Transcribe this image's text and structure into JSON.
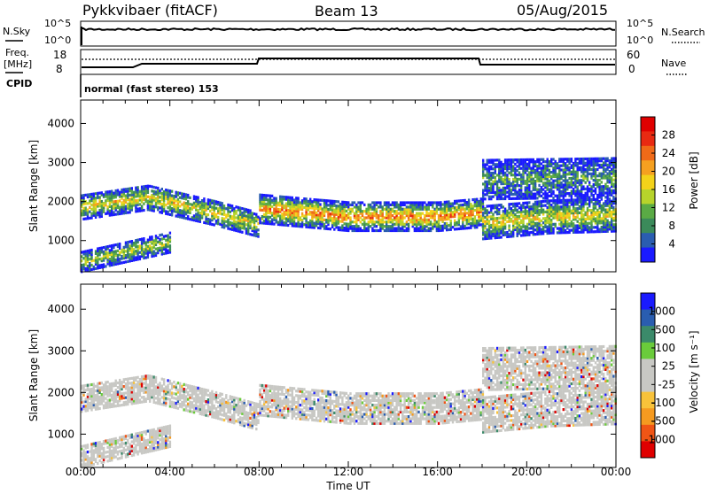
{
  "header": {
    "station": "Pykkvibaer (fitACF)",
    "beam": "Beam 13",
    "date": "05/Aug/2015"
  },
  "noise_panel": {
    "left_label": "N.Sky",
    "right_label": "N.Search",
    "left_ticks": [
      "10^5",
      "10^0"
    ],
    "right_ticks": [
      "10^5",
      "10^0"
    ]
  },
  "freq_panel": {
    "left_label_line1": "Freq.",
    "left_label_line2": "[MHz]",
    "left_ticks": [
      "18",
      "8"
    ],
    "right_label": "Nave",
    "right_ticks": [
      "60",
      "0"
    ]
  },
  "cpid": {
    "label": "CPID",
    "text": "normal (fast stereo) 153"
  },
  "colors": {
    "power": [
      "#1a1aff",
      "#2a5db0",
      "#3b8a5a",
      "#5aaa45",
      "#b7d32b",
      "#f3d21a",
      "#f5a020",
      "#f06a18",
      "#e82a12",
      "#e00000"
    ],
    "velocity": [
      "#e00000",
      "#f05515",
      "#f59a20",
      "#f8c23a",
      "#c8c8c4",
      "#c8c8c4",
      "#6acb3b",
      "#3b8a6a",
      "#2a5db0",
      "#1a1aff"
    ]
  },
  "chart_data": [
    {
      "type": "heatmap",
      "panel": "power",
      "ylabel": "Slant Range [km]",
      "yticks": [
        "4000",
        "3000",
        "2000",
        "1000"
      ],
      "ylim": [
        200,
        4600
      ],
      "xlim": [
        0,
        24
      ],
      "colorbar_label": "Power [dB]",
      "colorbar_ticks": [
        "28",
        "24",
        "20",
        "16",
        "12",
        "8",
        "4"
      ],
      "bands": [
        {
          "x": [
            0,
            3,
            6,
            8
          ],
          "y_center": [
            1900,
            2150,
            1750,
            1450
          ],
          "width": 320,
          "level": 0.55
        },
        {
          "x": [
            8,
            12,
            16,
            18
          ],
          "y_center": [
            1850,
            1650,
            1650,
            1750
          ],
          "width": 360,
          "level": 0.75
        },
        {
          "x": [
            18,
            21,
            24
          ],
          "y_center": [
            1500,
            1650,
            1700
          ],
          "width": 420,
          "level": 0.55
        },
        {
          "x": [
            0,
            4
          ],
          "y_center": [
            500,
            1000
          ],
          "width": 260,
          "level": 0.45
        },
        {
          "x": [
            18,
            24
          ],
          "y_center": [
            2600,
            2650
          ],
          "width": 500,
          "level": 0.3
        }
      ]
    },
    {
      "type": "heatmap",
      "panel": "velocity",
      "ylabel": "Slant Range [km]",
      "xlabel": "Time UT",
      "yticks": [
        "4000",
        "3000",
        "2000",
        "1000"
      ],
      "ylim": [
        200,
        4600
      ],
      "xlim": [
        0,
        24
      ],
      "xticks": [
        "00:00",
        "04:00",
        "08:00",
        "12:00",
        "16:00",
        "20:00",
        "00:00"
      ],
      "colorbar_label": "Velocity [m s⁻¹]",
      "colorbar_ticks": [
        "1000",
        "500",
        "100",
        "25",
        "-25",
        "-100",
        "-500",
        "-1000"
      ],
      "bands": [
        {
          "x": [
            0,
            3,
            6,
            8
          ],
          "y_center": [
            1900,
            2150,
            1750,
            1450
          ],
          "width": 320,
          "level": 0.45
        },
        {
          "x": [
            8,
            12,
            16,
            18
          ],
          "y_center": [
            1850,
            1650,
            1650,
            1750
          ],
          "width": 360,
          "level": 0.45
        },
        {
          "x": [
            18,
            21,
            24
          ],
          "y_center": [
            1500,
            1650,
            1700
          ],
          "width": 420,
          "level": 0.45
        },
        {
          "x": [
            0,
            4
          ],
          "y_center": [
            500,
            1000
          ],
          "width": 260,
          "level": 0.25
        },
        {
          "x": [
            18,
            24
          ],
          "y_center": [
            2600,
            2650
          ],
          "width": 500,
          "level": 0.35
        }
      ]
    }
  ]
}
